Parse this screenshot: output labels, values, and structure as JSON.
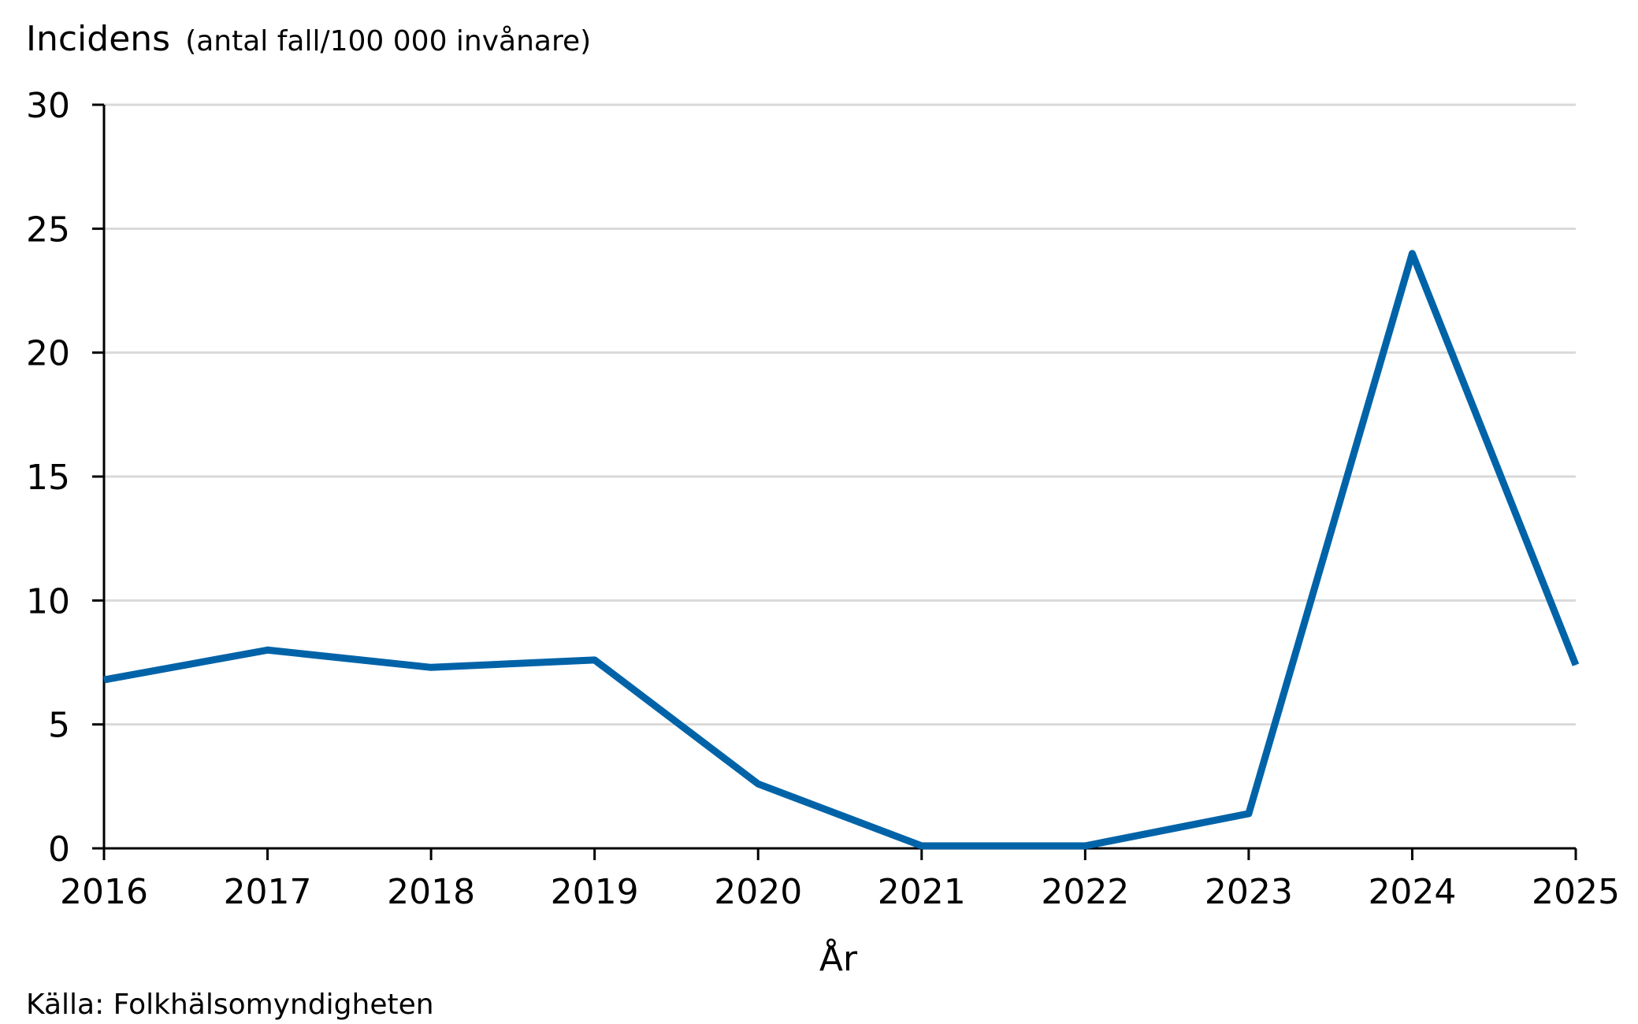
{
  "chart_data": {
    "type": "line",
    "ylabel_main": "Incidens",
    "ylabel_sub": "(antal fall/100 000 invånare)",
    "xlabel": "År",
    "source": "Källa: Folkhälsomyndigheten",
    "x": [
      "2016",
      "2017",
      "2018",
      "2019",
      "2020",
      "2021",
      "2022",
      "2023",
      "2024",
      "2025"
    ],
    "series": [
      {
        "values": [
          6.8,
          8.0,
          7.3,
          7.6,
          2.6,
          0.1,
          0.1,
          1.4,
          24.0,
          7.4
        ],
        "color": "#0063a8"
      }
    ],
    "ylim": [
      0,
      30
    ],
    "yticks": [
      0,
      5,
      10,
      15,
      20,
      25,
      30
    ],
    "grid": true,
    "gridline_color": "#d9d9d9",
    "axis_color": "#000000"
  }
}
